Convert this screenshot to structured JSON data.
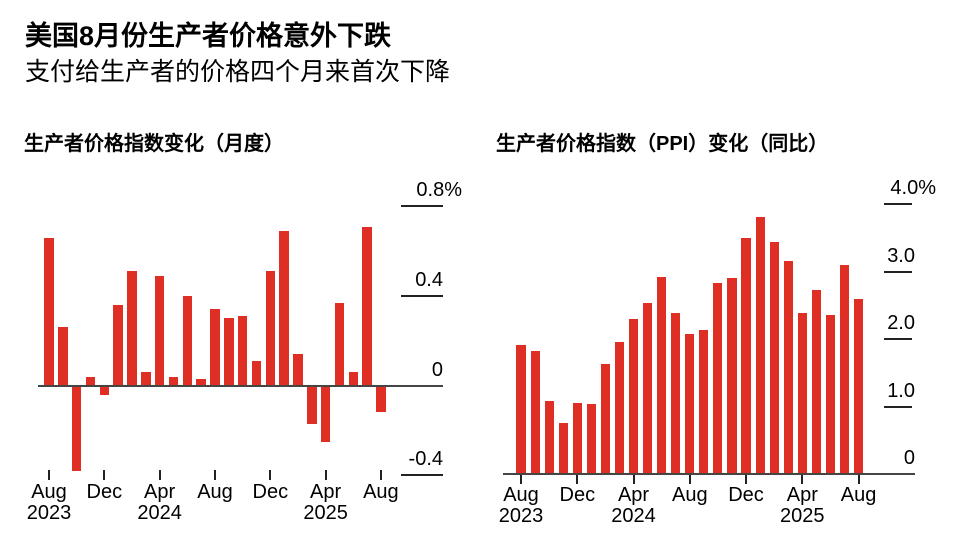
{
  "header": {
    "title": "美国8月份生产者价格意外下跌",
    "subtitle": "支付给生产者的价格四个月来首次下降"
  },
  "colors": {
    "bar": "#df2e24",
    "axis": "#454545",
    "tick": "#222222",
    "text": "#000000",
    "background": "#ffffff"
  },
  "chart_data": [
    {
      "type": "bar",
      "title": "生产者价格指数变化（月度）",
      "unit": "%",
      "categories": [
        "Aug 2023",
        "Sep 2023",
        "Oct 2023",
        "Nov 2023",
        "Dec 2023",
        "Jan 2024",
        "Feb 2024",
        "Mar 2024",
        "Apr 2024",
        "May 2024",
        "Jun 2024",
        "Jul 2024",
        "Aug 2024",
        "Sep 2024",
        "Oct 2024",
        "Nov 2024",
        "Dec 2024",
        "Jan 2025",
        "Feb 2025",
        "Mar 2025",
        "Apr 2025",
        "May 2025",
        "Jun 2025",
        "Jul 2025",
        "Aug 2025"
      ],
      "values": [
        0.66,
        0.26,
        -0.38,
        0.04,
        -0.04,
        0.36,
        0.51,
        0.06,
        0.49,
        0.04,
        0.4,
        0.03,
        0.34,
        0.3,
        0.31,
        0.11,
        0.51,
        0.69,
        0.14,
        -0.17,
        -0.25,
        0.37,
        0.06,
        0.71,
        -0.12
      ],
      "ylim": [
        -0.46,
        0.88
      ],
      "grid": false,
      "legend": "none",
      "yticks": [
        {
          "value": 0.8,
          "label": "0.8%"
        },
        {
          "value": 0.4,
          "label": "0.4"
        },
        {
          "value": 0.0,
          "label": "0"
        },
        {
          "value": -0.4,
          "label": "-0.4"
        }
      ],
      "xticks": [
        {
          "index": 0,
          "label": "Aug",
          "year": "2023"
        },
        {
          "index": 4,
          "label": "Dec",
          "year": ""
        },
        {
          "index": 8,
          "label": "Apr",
          "year": "2024"
        },
        {
          "index": 12,
          "label": "Aug",
          "year": ""
        },
        {
          "index": 16,
          "label": "Dec",
          "year": ""
        },
        {
          "index": 20,
          "label": "Apr",
          "year": "2025"
        },
        {
          "index": 24,
          "label": "Aug",
          "year": ""
        }
      ]
    },
    {
      "type": "bar",
      "title": "生产者价格指数（PPI）变化（同比）",
      "unit": "%",
      "categories": [
        "Aug 2023",
        "Sep 2023",
        "Oct 2023",
        "Nov 2023",
        "Dec 2023",
        "Jan 2024",
        "Feb 2024",
        "Mar 2024",
        "Apr 2024",
        "May 2024",
        "Jun 2024",
        "Jul 2024",
        "Aug 2024",
        "Sep 2024",
        "Oct 2024",
        "Nov 2024",
        "Dec 2024",
        "Jan 2025",
        "Feb 2025",
        "Mar 2025",
        "Apr 2025",
        "May 2025",
        "Jun 2025",
        "Jul 2025",
        "Aug 2025"
      ],
      "values": [
        1.91,
        1.82,
        1.08,
        0.76,
        1.05,
        1.04,
        1.63,
        1.96,
        2.3,
        2.54,
        2.92,
        2.39,
        2.07,
        2.14,
        2.83,
        2.9,
        3.49,
        3.8,
        3.43,
        3.15,
        2.39,
        2.73,
        2.36,
        3.1,
        2.6
      ],
      "ylim": [
        -0.23,
        4.27
      ],
      "grid": false,
      "legend": "none",
      "yticks": [
        {
          "value": 4.0,
          "label": "4.0%"
        },
        {
          "value": 3.0,
          "label": "3.0"
        },
        {
          "value": 2.0,
          "label": "2.0"
        },
        {
          "value": 1.0,
          "label": "1.0"
        },
        {
          "value": 0.0,
          "label": "0"
        }
      ],
      "xticks": [
        {
          "index": 0,
          "label": "Aug",
          "year": "2023"
        },
        {
          "index": 4,
          "label": "Dec",
          "year": ""
        },
        {
          "index": 8,
          "label": "Apr",
          "year": "2024"
        },
        {
          "index": 12,
          "label": "Aug",
          "year": ""
        },
        {
          "index": 16,
          "label": "Dec",
          "year": ""
        },
        {
          "index": 20,
          "label": "Apr",
          "year": "2025"
        },
        {
          "index": 24,
          "label": "Aug",
          "year": ""
        }
      ]
    }
  ]
}
